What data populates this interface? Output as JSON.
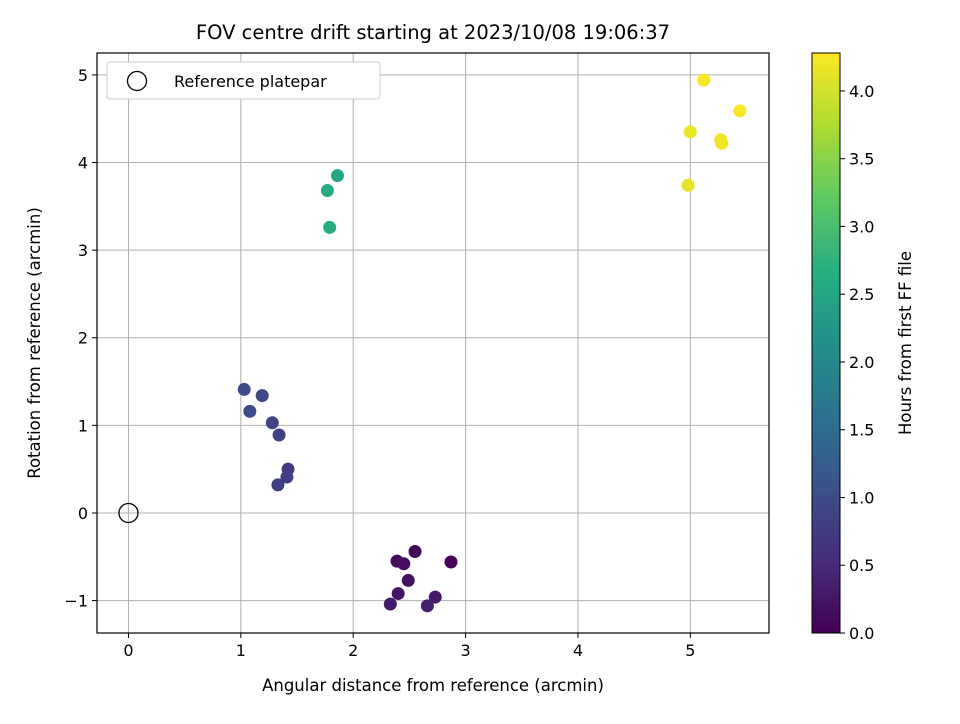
{
  "chart_data": {
    "type": "scatter",
    "title": "FOV centre drift starting at 2023/10/08 19:06:37",
    "xlabel": "Angular distance from reference (arcmin)",
    "ylabel": "Rotation from reference (arcmin)",
    "xlim": [
      -0.28,
      5.7
    ],
    "ylim": [
      -1.37,
      5.25
    ],
    "xticks": [
      0,
      1,
      2,
      3,
      4,
      5
    ],
    "yticks": [
      -1,
      0,
      1,
      2,
      3,
      4,
      5
    ],
    "grid": true,
    "legend": {
      "position": "top-left",
      "label": "Reference platepar"
    },
    "reference_point": {
      "x": 0,
      "y": 0
    },
    "colorbar": {
      "label": "Hours from first FF file",
      "colormap": "viridis",
      "range": [
        0,
        4.28
      ],
      "ticks": [
        "0.0",
        "0.5",
        "1.0",
        "1.5",
        "2.0",
        "2.5",
        "3.0",
        "3.5",
        "4.0"
      ]
    },
    "points": [
      {
        "x": 2.87,
        "y": -0.56,
        "c": 0.03
      },
      {
        "x": 2.55,
        "y": -0.44,
        "c": 0.08
      },
      {
        "x": 2.39,
        "y": -0.55,
        "c": 0.12
      },
      {
        "x": 2.45,
        "y": -0.58,
        "c": 0.16
      },
      {
        "x": 2.49,
        "y": -0.77,
        "c": 0.2
      },
      {
        "x": 2.4,
        "y": -0.92,
        "c": 0.24
      },
      {
        "x": 2.73,
        "y": -0.96,
        "c": 0.28
      },
      {
        "x": 2.33,
        "y": -1.04,
        "c": 0.31
      },
      {
        "x": 2.66,
        "y": -1.06,
        "c": 0.35
      },
      {
        "x": 1.42,
        "y": 0.5,
        "c": 0.72
      },
      {
        "x": 1.41,
        "y": 0.41,
        "c": 0.76
      },
      {
        "x": 1.33,
        "y": 0.32,
        "c": 0.8
      },
      {
        "x": 1.34,
        "y": 0.89,
        "c": 0.84
      },
      {
        "x": 1.28,
        "y": 1.03,
        "c": 0.88
      },
      {
        "x": 1.19,
        "y": 1.34,
        "c": 0.92
      },
      {
        "x": 1.08,
        "y": 1.16,
        "c": 0.95
      },
      {
        "x": 1.03,
        "y": 1.41,
        "c": 0.98
      },
      {
        "x": 1.86,
        "y": 3.85,
        "c": 2.55
      },
      {
        "x": 1.77,
        "y": 3.68,
        "c": 2.58
      },
      {
        "x": 1.79,
        "y": 3.26,
        "c": 2.62
      },
      {
        "x": 4.98,
        "y": 3.74,
        "c": 4.12
      },
      {
        "x": 5.0,
        "y": 4.35,
        "c": 4.16
      },
      {
        "x": 5.27,
        "y": 4.26,
        "c": 4.2
      },
      {
        "x": 5.28,
        "y": 4.22,
        "c": 4.22
      },
      {
        "x": 5.44,
        "y": 4.59,
        "c": 4.25
      },
      {
        "x": 5.12,
        "y": 4.94,
        "c": 4.27
      }
    ]
  }
}
